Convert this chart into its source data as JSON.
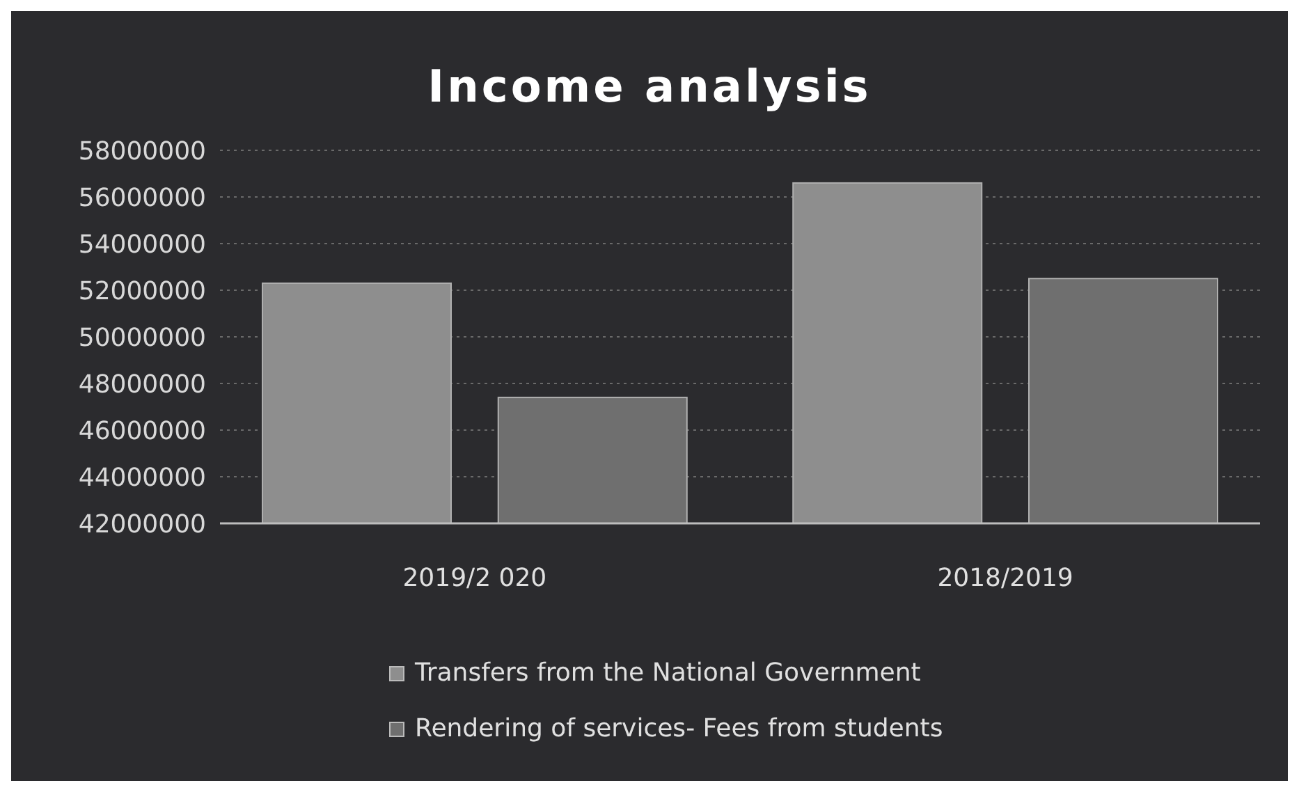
{
  "chart_data": {
    "type": "bar",
    "title": "Income analysis",
    "categories": [
      "2019/2 020",
      "2018/2019"
    ],
    "series": [
      {
        "name": "Transfers from the National Government",
        "color": "#8e8e8e",
        "values": [
          52300000,
          56600000
        ]
      },
      {
        "name": "Rendering of services- Fees from students",
        "color": "#6f6f6f",
        "values": [
          47400000,
          52500000
        ]
      }
    ],
    "ylim": [
      42000000,
      58000000
    ],
    "yticks": [
      42000000,
      44000000,
      46000000,
      48000000,
      50000000,
      52000000,
      54000000,
      56000000,
      58000000
    ],
    "grid": "y",
    "legend": "bottom"
  }
}
